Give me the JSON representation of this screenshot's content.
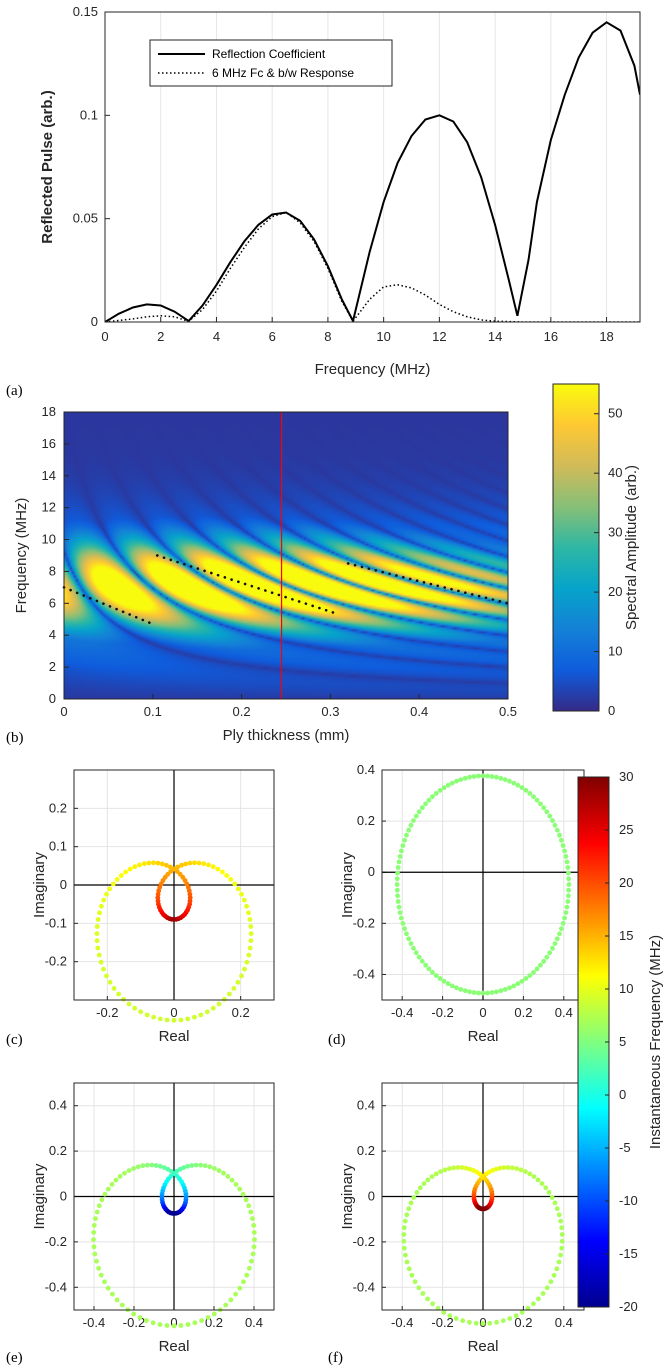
{
  "chart_data": [
    {
      "panel": "(a)",
      "type": "line",
      "xlabel": "Frequency (MHz)",
      "ylabel": "Reflected Pulse (arb.)",
      "xlim": [
        0,
        19.2
      ],
      "ylim": [
        0,
        0.15
      ],
      "xticks": [
        "0",
        "2",
        "4",
        "6",
        "8",
        "10",
        "12",
        "14",
        "16",
        "18"
      ],
      "yticks": [
        "0",
        "0.05",
        "0.1",
        "0.15"
      ],
      "grid": "vertical",
      "legend_position": "top-left",
      "series": [
        {
          "name": "Reflection Coefficient",
          "style": "solid",
          "x": [
            0,
            0.5,
            1,
            1.5,
            2,
            2.5,
            3,
            3.5,
            4,
            4.5,
            5,
            5.5,
            6,
            6.5,
            7,
            7.5,
            8,
            8.5,
            8.9,
            9.5,
            10,
            10.5,
            11,
            11.5,
            12,
            12.5,
            13,
            13.5,
            14,
            14.5,
            14.8,
            15.2,
            15.5,
            16,
            16.5,
            17,
            17.5,
            18,
            18.5,
            19,
            19.2
          ],
          "y": [
            0,
            0.004,
            0.007,
            0.0085,
            0.008,
            0.005,
            0.0005,
            0.008,
            0.018,
            0.029,
            0.039,
            0.047,
            0.052,
            0.053,
            0.049,
            0.04,
            0.027,
            0.011,
            0.0005,
            0.034,
            0.058,
            0.077,
            0.09,
            0.098,
            0.1,
            0.097,
            0.087,
            0.07,
            0.047,
            0.02,
            0.003,
            0.03,
            0.058,
            0.088,
            0.11,
            0.128,
            0.14,
            0.145,
            0.141,
            0.124,
            0.11
          ]
        },
        {
          "name": "6 MHz Fc & b/w Response",
          "style": "dotted",
          "x": [
            0,
            1,
            1.5,
            2,
            2.5,
            3,
            3.5,
            4,
            4.5,
            5,
            5.5,
            6,
            6.5,
            7,
            7.5,
            8,
            8.5,
            8.9,
            9.5,
            10,
            10.5,
            11,
            11.5,
            12,
            12.5,
            13,
            13.5,
            14,
            15,
            16,
            17,
            18,
            19.2
          ],
          "y": [
            0,
            0.0015,
            0.0025,
            0.003,
            0.0025,
            0.0003,
            0.006,
            0.015,
            0.026,
            0.036,
            0.045,
            0.051,
            0.053,
            0.048,
            0.039,
            0.026,
            0.01,
            0.0004,
            0.011,
            0.017,
            0.018,
            0.0165,
            0.013,
            0.0085,
            0.005,
            0.0025,
            0.001,
            0.0004,
            0,
            0,
            0,
            0,
            0
          ]
        }
      ]
    },
    {
      "panel": "(b)",
      "type": "heatmap",
      "xlabel": "Ply thickness (mm)",
      "ylabel": "Frequency (MHz)",
      "xlim": [
        0,
        0.5
      ],
      "ylim": [
        0,
        18
      ],
      "xticks": [
        "0",
        "0.1",
        "0.2",
        "0.3",
        "0.4",
        "0.5"
      ],
      "yticks": [
        "0",
        "2",
        "4",
        "6",
        "8",
        "10",
        "12",
        "14",
        "16",
        "18"
      ],
      "colorbar": {
        "label": "Spectral Amplitude (arb.)",
        "range": [
          0,
          55
        ],
        "ticks": [
          "0",
          "10",
          "20",
          "30",
          "40",
          "50"
        ]
      },
      "marker_line_x": 0.245,
      "lobes": [
        {
          "x0": 0.0,
          "f": 6.7,
          "amp": 48
        },
        {
          "x0": 0.205,
          "f": 7.1,
          "amp": 55
        },
        {
          "x0": 0.41,
          "f": 7.3,
          "amp": 50
        }
      ],
      "dotted_segments": [
        {
          "x": [
            0.0,
            0.1
          ],
          "y": [
            7.0,
            4.7
          ]
        },
        {
          "x": [
            0.105,
            0.31
          ],
          "y": [
            9.0,
            5.3
          ]
        },
        {
          "x": [
            0.32,
            0.5
          ],
          "y": [
            8.5,
            6.0
          ]
        }
      ]
    },
    {
      "panel": "(c)",
      "type": "scatter",
      "xlabel": "Real",
      "ylabel": "Imaginary",
      "xlim": [
        -0.3,
        0.3
      ],
      "ylim": [
        -0.3,
        0.3
      ],
      "xticks": [
        "-0.2",
        "0",
        "0.2"
      ],
      "yticks": [
        "-0.2",
        "-0.1",
        "0",
        "0.1",
        "0.2"
      ],
      "curve": {
        "A": 0.1315,
        "B": 0.1315,
        "fc": 0,
        "fs": 6.5,
        "cmode": "c"
      }
    },
    {
      "panel": "(d)",
      "type": "scatter",
      "xlabel": "Real",
      "ylabel": "Imaginary",
      "xlim": [
        -0.5,
        0.5
      ],
      "ylim": [
        -0.5,
        0.4
      ],
      "xticks": [
        "-0.4",
        "-0.2",
        "0",
        "0.2",
        "0.4"
      ],
      "yticks": [
        "-0.4",
        "-0.2",
        "0",
        "0.2",
        "0.4"
      ],
      "curve": {
        "A": 0.425,
        "B": 0.0,
        "fc": -0.048,
        "fs": 0,
        "cmode": "d"
      }
    },
    {
      "panel": "(e)",
      "type": "scatter",
      "xlabel": "Real",
      "ylabel": "Imaginary",
      "xlim": [
        -0.5,
        0.5
      ],
      "ylim": [
        -0.5,
        0.5
      ],
      "xticks": [
        "-0.4",
        "-0.2",
        "0",
        "0.2",
        "0.4"
      ],
      "yticks": [
        "-0.4",
        "-0.2",
        "0",
        "0.2",
        "0.4"
      ],
      "curve": {
        "A": 0.2475,
        "B": 0.2125,
        "fc": -0.11,
        "fs": 0.4,
        "cmode": "e"
      }
    },
    {
      "panel": "(f)",
      "type": "scatter",
      "xlabel": "Real",
      "ylabel": "Imaginary",
      "xlim": [
        -0.5,
        0.5
      ],
      "ylim": [
        -0.5,
        0.5
      ],
      "xticks": [
        "-0.4",
        "-0.2",
        "0",
        "0.2",
        "0.4"
      ],
      "yticks": [
        "-0.4",
        "-0.2",
        "0",
        "0.2",
        "0.4"
      ],
      "curve": {
        "A": 0.2525,
        "B": 0.1975,
        "fc": -0.11,
        "fs": 3.0,
        "cmode": "f"
      }
    }
  ],
  "colorbar_right": {
    "label": "Instantaneous Frequency (MHz)",
    "range": [
      -20,
      30
    ],
    "ticks": [
      "-20",
      "-15",
      "-10",
      "-5",
      "0",
      "5",
      "10",
      "15",
      "20",
      "25",
      "30"
    ]
  },
  "colors": {
    "jet": "jet",
    "parula": "parula",
    "marker_line": "#ff0000"
  }
}
